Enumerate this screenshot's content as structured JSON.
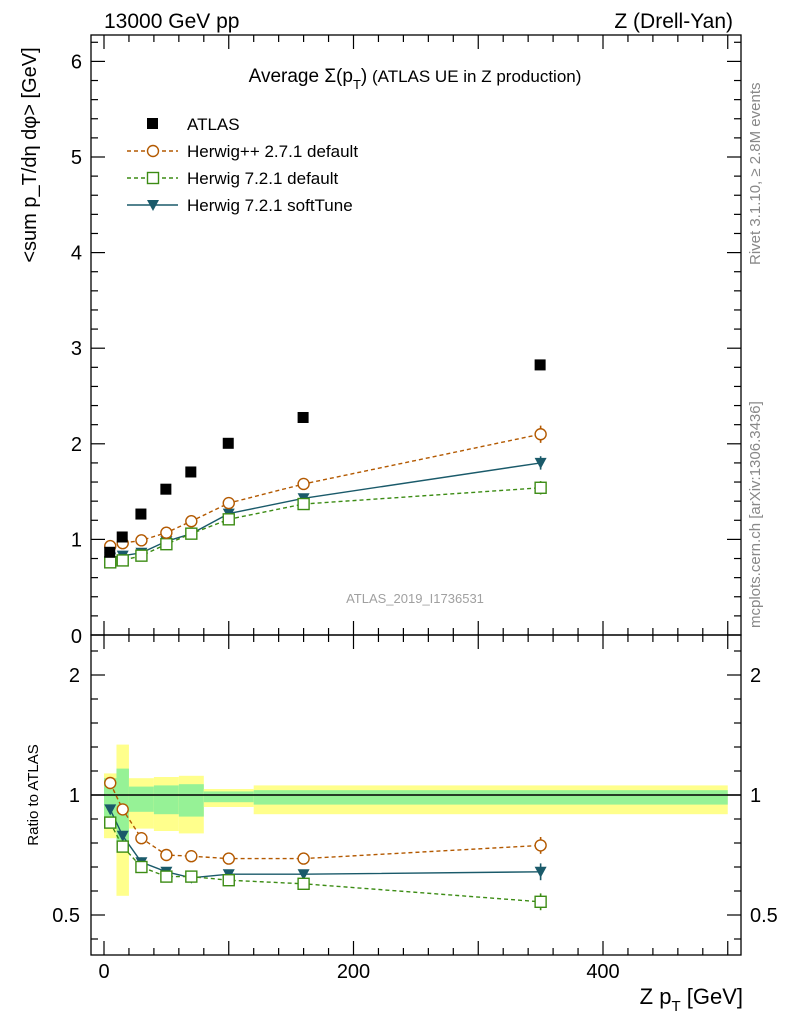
{
  "header": {
    "left": "13000 GeV pp",
    "right": "Z (Drell-Yan)"
  },
  "side_labels": {
    "rivet": "Rivet 3.1.10, ≥ 2.8M events",
    "mcplots": "mcplots.cern.ch [arXiv:1306.3436]"
  },
  "chart_data": [
    {
      "type": "scatter",
      "title_prefix": "Average ",
      "title_sigma": "Σ(p",
      "title_sub": "T",
      "title_close": ")",
      "title_suffix": " (ATLAS UE in Z production)",
      "analysis_label": "ATLAS_2019_I1736531",
      "ylabel": "<sum p_T/dη dφ> [GeV]",
      "xlim": [
        -15,
        510
      ],
      "ylim": [
        0,
        6.3
      ],
      "yticks": [
        "1",
        "2",
        "3",
        "4",
        "5",
        "6"
      ],
      "y0_label": "0",
      "legend_position": "top-left",
      "x": [
        5,
        15,
        30,
        50,
        70,
        100,
        160,
        350
      ],
      "series": [
        {
          "name": "ATLAS",
          "color": "#000000",
          "marker": "square-filled",
          "values": [
            0.86,
            1.02,
            1.26,
            1.52,
            1.7,
            2.0,
            2.27,
            2.82
          ]
        },
        {
          "name": "Herwig++ 2.7.1 default",
          "color": "#b35900",
          "marker": "circle-open",
          "dash": true,
          "values": [
            0.93,
            0.96,
            0.99,
            1.07,
            1.19,
            1.38,
            1.58,
            2.1
          ],
          "errors": [
            0.03,
            0.03,
            0.03,
            0.03,
            0.03,
            0.03,
            0.03,
            0.09
          ]
        },
        {
          "name": "Herwig 7.2.1 default",
          "color": "#3c8c14",
          "marker": "square-open",
          "dash": true,
          "values": [
            0.76,
            0.78,
            0.83,
            0.95,
            1.06,
            1.21,
            1.37,
            1.54
          ],
          "errors": [
            0.03,
            0.03,
            0.03,
            0.03,
            0.03,
            0.03,
            0.03,
            0.07
          ]
        },
        {
          "name": "Herwig 7.2.1 softTune",
          "color": "#1a5a6a",
          "marker": "triangle-down-filled",
          "dash": false,
          "values": [
            0.81,
            0.83,
            0.86,
            0.98,
            1.06,
            1.27,
            1.43,
            1.8
          ],
          "errors": [
            0.03,
            0.03,
            0.03,
            0.03,
            0.03,
            0.03,
            0.03,
            0.07
          ]
        }
      ]
    },
    {
      "type": "scatter",
      "ylabel": "Ratio to ATLAS",
      "xlabel_main": "Z p",
      "xlabel_sub": "T",
      "xlabel_unit": " [GeV]",
      "xlim": [
        -15,
        510
      ],
      "ylim": [
        0.34,
        2.25
      ],
      "xticks": [
        "0",
        "200",
        "400"
      ],
      "yticks": [
        "0.5",
        "1",
        "2"
      ],
      "x": [
        5,
        15,
        30,
        50,
        70,
        100,
        160,
        350
      ],
      "bands": {
        "edges": [
          0,
          10,
          20,
          40,
          60,
          80,
          120,
          200,
          500
        ],
        "inner": [
          0.14,
          0.22,
          0.07,
          0.08,
          0.09,
          0.03,
          0.04,
          0.04
        ],
        "outer": [
          0.18,
          0.42,
          0.14,
          0.15,
          0.16,
          0.05,
          0.08,
          0.08
        ],
        "inner_color": "#96f296",
        "outer_color": "#ffff8c"
      },
      "series": [
        {
          "name": "Herwig++ 2.7.1 default",
          "color": "#b35900",
          "marker": "circle-open",
          "dash": true,
          "values": [
            1.1,
            0.94,
            0.82,
            0.75,
            0.745,
            0.735,
            0.735,
            0.79
          ],
          "errors": [
            0.02,
            0.02,
            0.02,
            0.01,
            0.01,
            0.01,
            0.01,
            0.035
          ]
        },
        {
          "name": "Herwig 7.2.1 default",
          "color": "#3c8c14",
          "marker": "square-open",
          "dash": true,
          "values": [
            0.885,
            0.785,
            0.7,
            0.66,
            0.66,
            0.645,
            0.63,
            0.555
          ],
          "errors": [
            0.02,
            0.02,
            0.02,
            0.01,
            0.01,
            0.01,
            0.01,
            0.035
          ]
        },
        {
          "name": "Herwig 7.2.1 softTune",
          "color": "#1a5a6a",
          "marker": "triangle-down-filled",
          "dash": false,
          "values": [
            0.94,
            0.83,
            0.72,
            0.68,
            0.655,
            0.67,
            0.67,
            0.68
          ],
          "errors": [
            0.02,
            0.02,
            0.02,
            0.01,
            0.01,
            0.01,
            0.01,
            0.035
          ]
        }
      ]
    }
  ]
}
